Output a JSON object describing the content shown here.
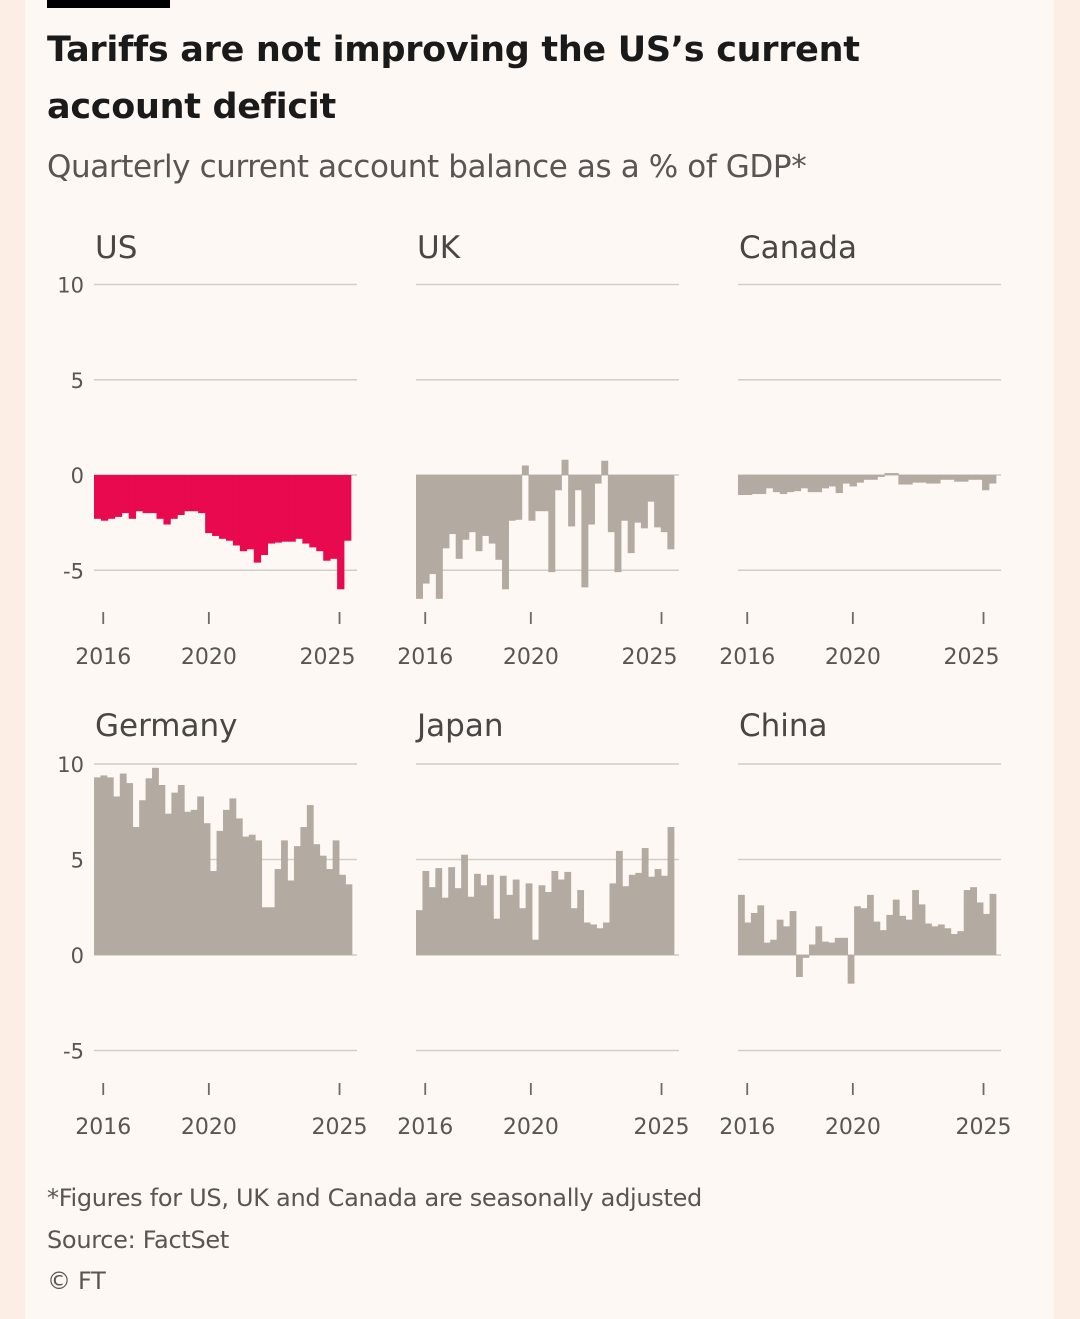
{
  "header": {
    "title": "Tariffs are not improving the US’s current account deficit",
    "subtitle": "Quarterly current account balance as a % of GDP*"
  },
  "footer": {
    "note": "*Figures for US, UK and Canada are seasonally adjusted",
    "source": "Source: FactSet",
    "copyright": "© FT"
  },
  "colors": {
    "highlight": "#e8094f",
    "bars": "#b3aaa1",
    "grid": "#d2cdc6",
    "background": "#fdf8f3"
  },
  "chart_data": {
    "type": "bar",
    "title": "Tariffs are not improving the US’s current account deficit",
    "subtitle": "Quarterly current account balance as a % of GDP*",
    "ylabel": "% of GDP",
    "period": "2015Q3–2025Q1 (quarterly, approx.)",
    "grid": true,
    "panels": [
      {
        "name": "US",
        "highlight": true,
        "ylim": [
          -5,
          10
        ],
        "yticks": [
          10,
          5,
          0,
          -5
        ],
        "xticks": [
          "2016",
          "2020",
          "2025"
        ],
        "values": [
          -2.3,
          -2.4,
          -2.3,
          -2.2,
          -2.0,
          -2.3,
          -1.9,
          -2.0,
          -2.0,
          -2.3,
          -2.6,
          -2.3,
          -2.1,
          -1.9,
          -1.9,
          -2.0,
          -3.05,
          -3.2,
          -3.35,
          -3.45,
          -3.7,
          -4.0,
          -3.9,
          -4.6,
          -4.2,
          -3.6,
          -3.55,
          -3.5,
          -3.5,
          -3.35,
          -3.6,
          -3.8,
          -4.0,
          -4.5,
          -4.4,
          -6.0,
          -3.45
        ]
      },
      {
        "name": "UK",
        "highlight": false,
        "ylim": [
          -5,
          10
        ],
        "yticks": [
          10,
          5,
          0,
          -5
        ],
        "xticks": [
          "2016",
          "2020",
          "2025"
        ],
        "values": [
          -6.5,
          -5.7,
          -5.2,
          -6.5,
          -3.85,
          -3.1,
          -4.4,
          -3.4,
          -3.0,
          -4.0,
          -3.2,
          -3.6,
          -4.45,
          -6.0,
          -2.4,
          -2.35,
          0.5,
          -2.4,
          -1.9,
          -1.9,
          -5.1,
          -0.8,
          0.8,
          -2.7,
          -0.8,
          -5.9,
          -2.6,
          -0.45,
          0.75,
          -3.0,
          -5.1,
          -2.4,
          -4.1,
          -2.5,
          -2.8,
          -1.4,
          -2.75,
          -3.0,
          -3.9
        ]
      },
      {
        "name": "Canada",
        "highlight": false,
        "ylim": [
          -5,
          10
        ],
        "yticks": [
          10,
          5,
          0,
          -5
        ],
        "xticks": [
          "2016",
          "2020",
          "2025"
        ],
        "values": [
          -1.05,
          -1.05,
          -1.0,
          -1.0,
          -0.7,
          -0.9,
          -1.0,
          -0.9,
          -0.85,
          -0.7,
          -0.9,
          -0.9,
          -0.7,
          -0.6,
          -0.95,
          -0.45,
          -0.6,
          -0.4,
          -0.25,
          -0.25,
          -0.1,
          0.1,
          0.1,
          -0.5,
          -0.5,
          -0.4,
          -0.4,
          -0.45,
          -0.45,
          -0.25,
          -0.25,
          -0.35,
          -0.35,
          -0.25,
          -0.25,
          -0.8,
          -0.45
        ]
      },
      {
        "name": "Germany",
        "highlight": false,
        "ylim": [
          -5,
          10
        ],
        "yticks": [
          10,
          5,
          0,
          -5
        ],
        "xticks": [
          "2016",
          "2020",
          "2025"
        ],
        "values": [
          9.3,
          9.4,
          9.3,
          8.3,
          9.5,
          9.0,
          6.7,
          8.1,
          9.25,
          9.8,
          8.9,
          7.4,
          8.5,
          8.9,
          7.5,
          7.6,
          8.3,
          6.9,
          4.4,
          6.5,
          7.6,
          8.2,
          7.15,
          6.2,
          6.3,
          6.0,
          2.5,
          2.5,
          4.5,
          6.0,
          3.9,
          5.7,
          6.7,
          7.85,
          5.8,
          5.2,
          4.5,
          6.0,
          4.2,
          3.7
        ]
      },
      {
        "name": "Japan",
        "highlight": false,
        "ylim": [
          -5,
          10
        ],
        "yticks": [
          10,
          5,
          0,
          -5
        ],
        "xticks": [
          "2016",
          "2020",
          "2025"
        ],
        "values": [
          2.35,
          4.4,
          3.55,
          4.55,
          3.0,
          4.6,
          3.5,
          5.25,
          3.05,
          4.25,
          3.65,
          4.2,
          1.9,
          4.15,
          3.15,
          3.95,
          2.45,
          3.75,
          0.8,
          3.65,
          3.3,
          4.4,
          3.95,
          4.35,
          2.45,
          3.4,
          1.7,
          1.6,
          1.4,
          1.7,
          3.75,
          5.45,
          3.6,
          4.2,
          4.3,
          5.6,
          4.1,
          4.5,
          4.15,
          6.7
        ]
      },
      {
        "name": "China",
        "highlight": false,
        "ylim": [
          -5,
          10
        ],
        "yticks": [
          10,
          5,
          0,
          -5
        ],
        "xticks": [
          "2016",
          "2020",
          "2025"
        ],
        "values": [
          3.15,
          1.7,
          2.2,
          2.6,
          0.65,
          0.8,
          1.85,
          1.5,
          2.3,
          -1.15,
          -0.15,
          0.55,
          1.5,
          0.7,
          0.65,
          0.9,
          0.9,
          -1.5,
          2.55,
          2.45,
          3.15,
          1.75,
          1.3,
          2.1,
          2.9,
          2.05,
          1.85,
          3.4,
          2.65,
          1.65,
          1.5,
          1.6,
          1.4,
          1.1,
          1.25,
          3.4,
          3.55,
          2.75,
          2.15,
          3.2
        ]
      }
    ]
  }
}
